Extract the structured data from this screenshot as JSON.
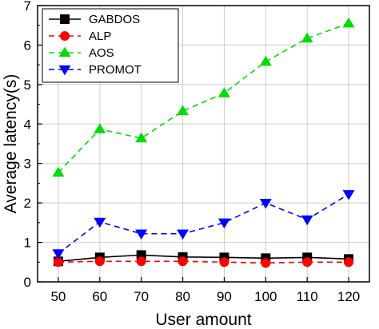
{
  "chart_data": {
    "type": "line",
    "title": "",
    "xlabel": "User amount",
    "ylabel": "Average latency(s)",
    "x": [
      50,
      60,
      70,
      80,
      90,
      100,
      110,
      120
    ],
    "xlim": [
      45,
      125
    ],
    "ylim": [
      0,
      7
    ],
    "xticks": [
      "50",
      "60",
      "70",
      "80",
      "90",
      "100",
      "110",
      "120"
    ],
    "yticks": [
      "0",
      "1",
      "2",
      "3",
      "4",
      "5",
      "6",
      "7"
    ],
    "grid": true,
    "legend_position": "top-left",
    "series": [
      {
        "name": "GABDOS",
        "color": "#000000",
        "marker": "square",
        "dashed": false,
        "values": [
          0.52,
          0.62,
          0.68,
          0.63,
          0.62,
          0.6,
          0.62,
          0.58
        ]
      },
      {
        "name": "ALP",
        "color": "#ff0000",
        "marker": "circle",
        "dashed": true,
        "values": [
          0.5,
          0.52,
          0.52,
          0.52,
          0.5,
          0.48,
          0.5,
          0.5
        ]
      },
      {
        "name": "AOS",
        "color": "#00dd00",
        "marker": "triangle-up",
        "dashed": true,
        "values": [
          2.77,
          3.87,
          3.64,
          4.33,
          4.78,
          5.58,
          6.17,
          6.55
        ]
      },
      {
        "name": "PROMOT",
        "color": "#0000ff",
        "marker": "triangle-down",
        "dashed": true,
        "values": [
          0.72,
          1.52,
          1.22,
          1.22,
          1.5,
          2.0,
          1.58,
          2.22
        ]
      }
    ]
  }
}
